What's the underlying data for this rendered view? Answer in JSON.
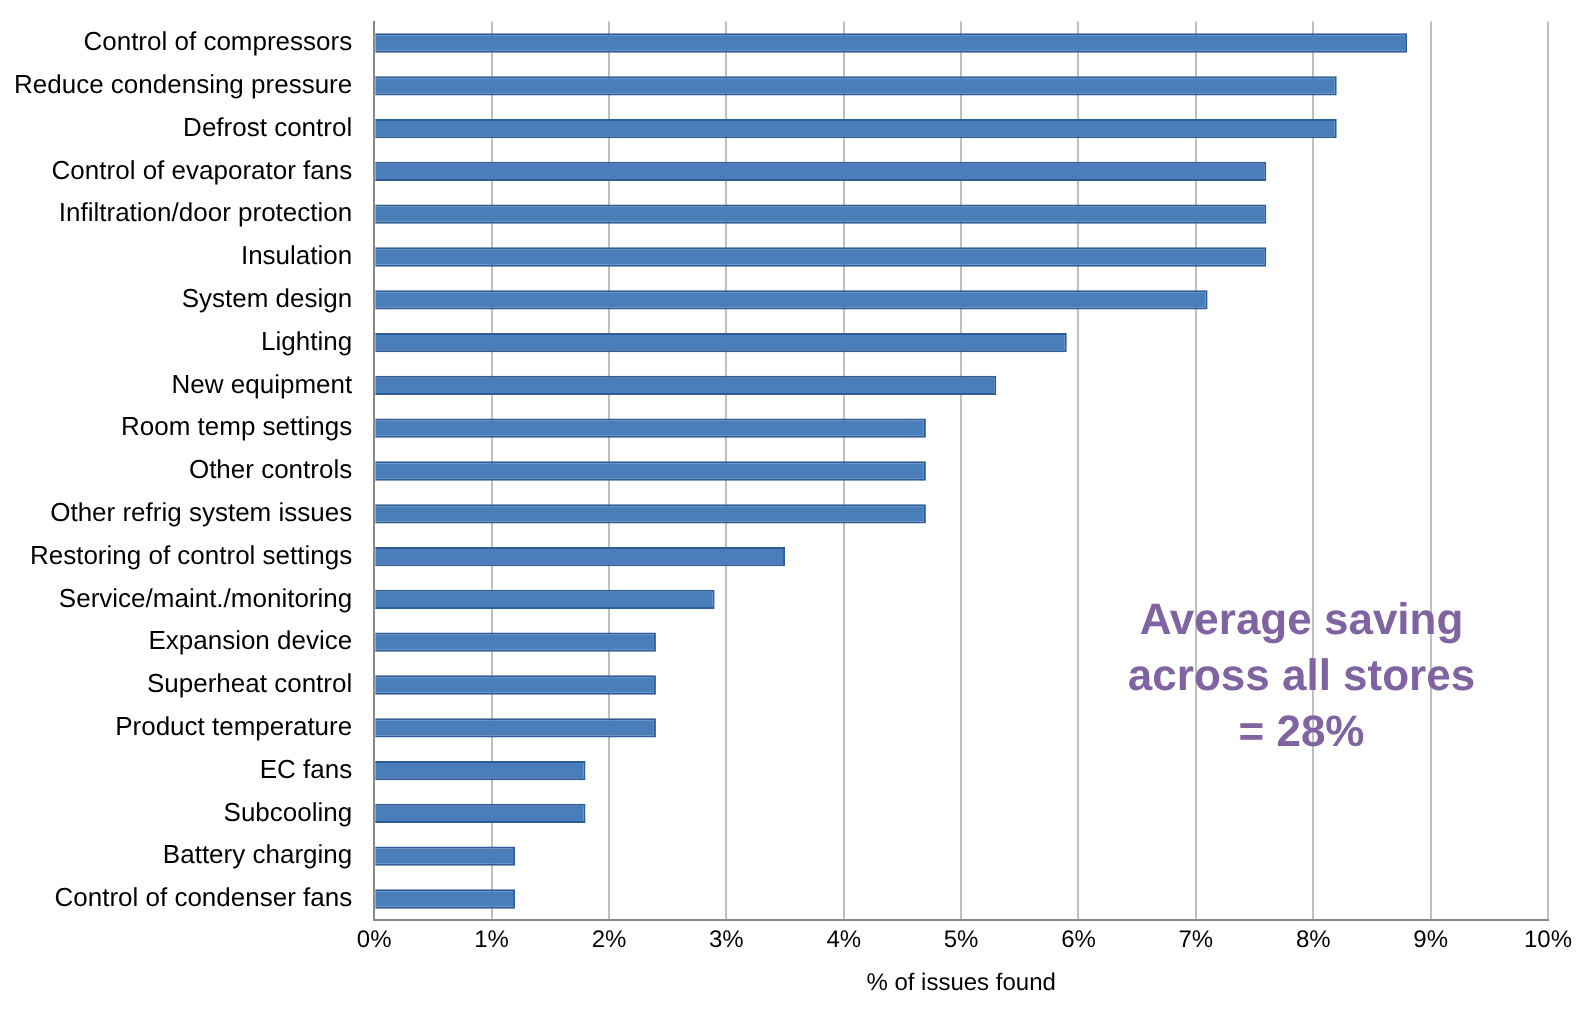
{
  "chart_data": {
    "type": "bar",
    "orientation": "horizontal",
    "xlabel": "% of issues found",
    "categories": [
      "Control of compressors",
      "Reduce condensing pressure",
      "Defrost control",
      "Control of evaporator fans",
      "Infiltration/door protection",
      "Insulation",
      "System design",
      "Lighting",
      "New equipment",
      "Room temp settings",
      "Other controls",
      "Other refrig system issues",
      "Restoring of control settings",
      "Service/maint./monitoring",
      "Expansion device",
      "Superheat control",
      "Product temperature",
      "EC fans",
      "Subcooling",
      "Battery charging",
      "Control of condenser fans"
    ],
    "values": [
      8.8,
      8.2,
      8.2,
      7.6,
      7.6,
      7.6,
      7.1,
      5.9,
      5.3,
      4.7,
      4.7,
      4.7,
      3.5,
      2.9,
      2.4,
      2.4,
      2.4,
      1.8,
      1.8,
      1.2,
      1.2
    ],
    "color": "#4a7ebb",
    "xlim": [
      0,
      10
    ],
    "xticks": [
      {
        "value": 0,
        "label": "0%"
      },
      {
        "value": 1,
        "label": "1%"
      },
      {
        "value": 2,
        "label": "2%"
      },
      {
        "value": 3,
        "label": "3%"
      },
      {
        "value": 4,
        "label": "4%"
      },
      {
        "value": 5,
        "label": "5%"
      },
      {
        "value": 6,
        "label": "6%"
      },
      {
        "value": 7,
        "label": "7%"
      },
      {
        "value": 8,
        "label": "8%"
      },
      {
        "value": 9,
        "label": "9%"
      },
      {
        "value": 10,
        "label": "10%"
      }
    ],
    "grid": "x",
    "legend": false,
    "annotations": [
      "Average saving\nacross all stores\n= 28%"
    ]
  }
}
